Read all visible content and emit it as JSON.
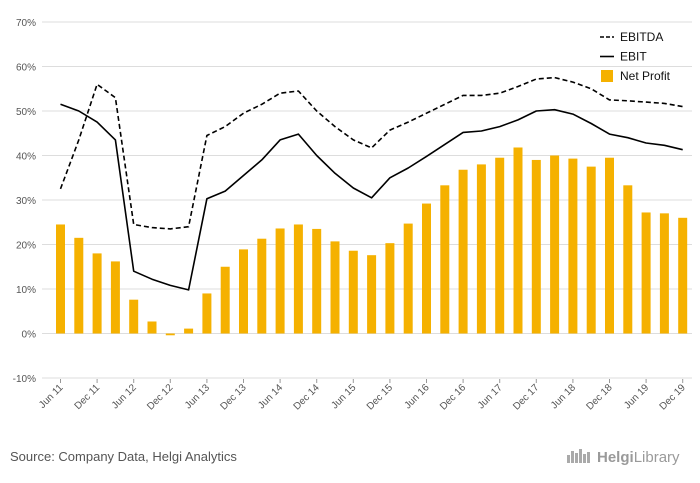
{
  "chart_data": {
    "type": "bar+line",
    "categories": [
      "Jun 11",
      "Sep 11",
      "Dec 11",
      "Mar 12",
      "Jun 12",
      "Sep 12",
      "Dec 12",
      "Mar 13",
      "Jun 13",
      "Sep 13",
      "Dec 13",
      "Mar 14",
      "Jun 14",
      "Sep 14",
      "Dec 14",
      "Mar 15",
      "Jun 15",
      "Sep 15",
      "Dec 15",
      "Mar 16",
      "Jun 16",
      "Sep 16",
      "Dec 16",
      "Mar 17",
      "Jun 17",
      "Sep 17",
      "Dec 17",
      "Mar 18",
      "Jun 18",
      "Sep 18",
      "Dec 18",
      "Mar 19",
      "Jun 19",
      "Sep 19",
      "Dec 19"
    ],
    "tick_labels": [
      "Jun 11",
      "Dec 11",
      "Jun 12",
      "Dec 12",
      "Jun 13",
      "Dec 13",
      "Jun 14",
      "Dec 14",
      "Jun 15",
      "Dec 15",
      "Jun 16",
      "Dec 16",
      "Jun 17",
      "Dec 17",
      "Jun 18",
      "Dec 18",
      "Jun 19",
      "Dec 19"
    ],
    "y_tick_labels": [
      "-10%",
      "0%",
      "10%",
      "20%",
      "30%",
      "40%",
      "50%",
      "60%",
      "70%"
    ],
    "ylim": [
      -10,
      70
    ],
    "y_unit": "%",
    "grid": true,
    "legend_position": "top-right",
    "series": [
      {
        "name": "EBITDA",
        "kind": "line",
        "style": "dashed",
        "color": "#000000",
        "values": [
          32.5,
          43.5,
          56,
          53,
          24.5,
          23.8,
          23.5,
          24,
          44.5,
          46.5,
          49.5,
          51.5,
          54,
          54.5,
          50,
          46.5,
          43.5,
          41.7,
          45.7,
          47.5,
          49.5,
          51.5,
          53.5,
          53.5,
          54,
          55.5,
          57.2,
          57.5,
          56.5,
          55,
          52.5,
          52.3,
          52,
          51.7,
          51
        ]
      },
      {
        "name": "EBIT",
        "kind": "line",
        "style": "solid",
        "color": "#000000",
        "values": [
          51.5,
          50,
          47.5,
          43.5,
          14,
          12.2,
          10.8,
          9.8,
          30.3,
          32,
          35.5,
          39,
          43.5,
          44.8,
          40,
          36,
          32.7,
          30.5,
          35,
          37.2,
          39.8,
          42.5,
          45.2,
          45.5,
          46.5,
          48,
          50,
          50.3,
          49.3,
          47.2,
          44.8,
          44,
          42.8,
          42.3,
          41.3
        ]
      },
      {
        "name": "Net Profit",
        "kind": "bar",
        "color": "#f5b100",
        "values": [
          24.5,
          21.5,
          18,
          16.2,
          7.6,
          2.7,
          -0.4,
          1.1,
          9,
          15,
          18.9,
          21.3,
          23.6,
          24.5,
          23.5,
          20.7,
          18.6,
          17.6,
          20.3,
          24.7,
          29.2,
          33.3,
          36.8,
          38,
          39.5,
          41.8,
          39,
          40,
          39.3,
          37.5,
          39.5,
          33.3,
          27.2,
          27,
          26
        ]
      }
    ]
  },
  "footer": {
    "source": "Source: Company Data, Helgi Analytics",
    "brand_prefix": "Helgi",
    "brand_suffix": "Library"
  },
  "colors": {
    "bar": "#f5b100",
    "grid": "#dddddd",
    "axis_text": "#555555"
  }
}
